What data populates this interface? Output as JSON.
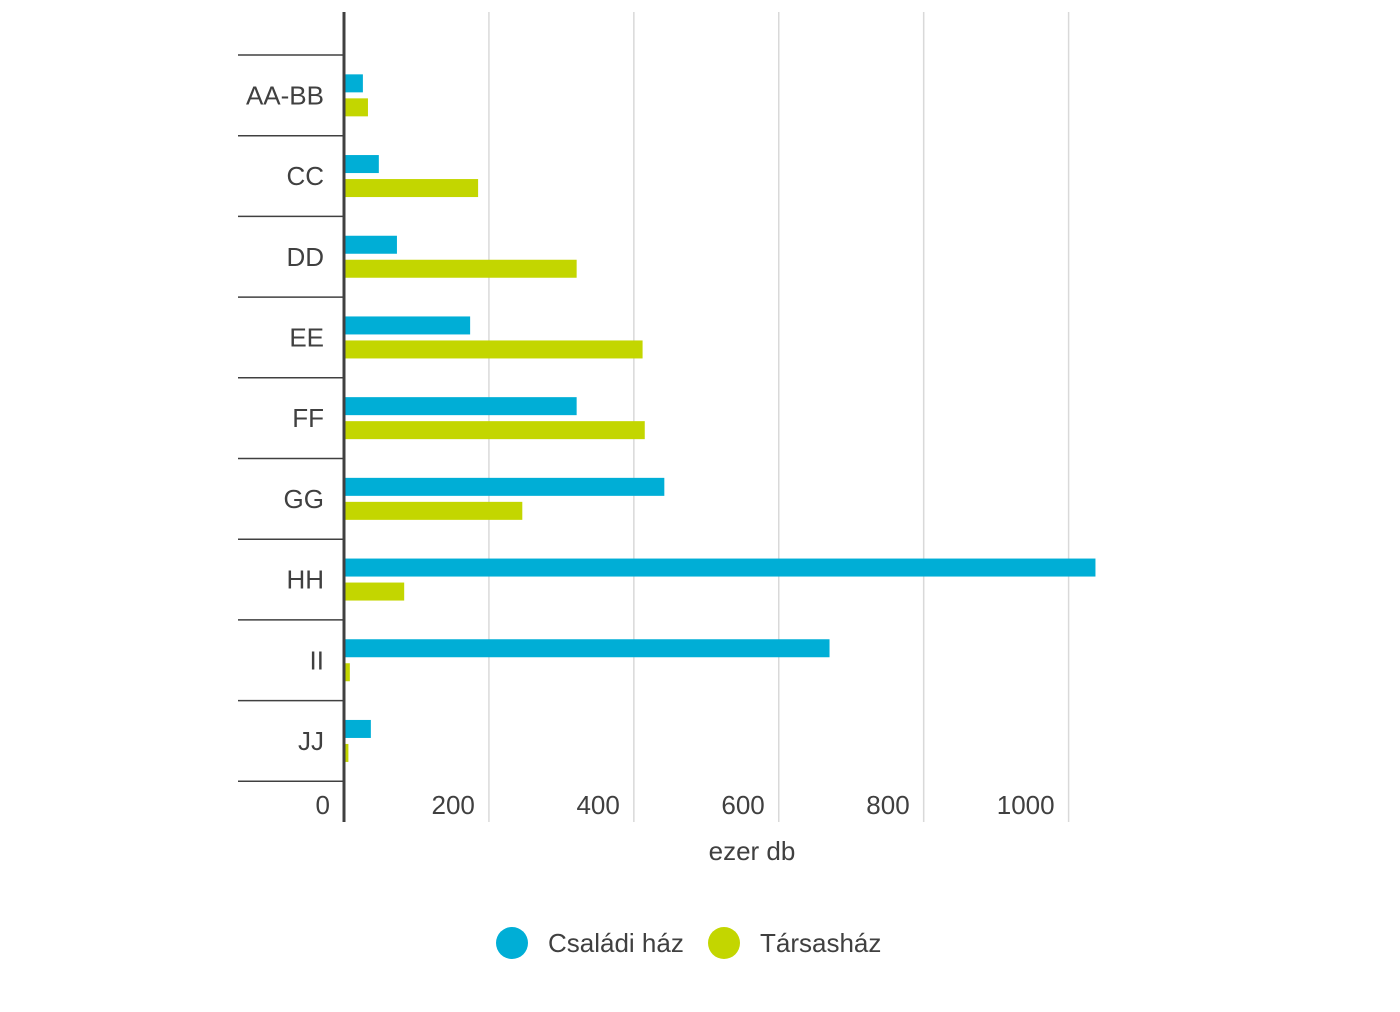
{
  "chart_data": {
    "type": "bar",
    "orientation": "horizontal",
    "categories": [
      "AA-BB",
      "CC",
      "DD",
      "EE",
      "FF",
      "GG",
      "HH",
      "II",
      "JJ"
    ],
    "series": [
      {
        "name": "Családi ház",
        "color": "#00aed6",
        "values": [
          24,
          46,
          71,
          172,
          319,
          440,
          1035,
          668,
          35
        ]
      },
      {
        "name": "Társasház",
        "color": "#c3d600",
        "values": [
          31,
          183,
          319,
          410,
          413,
          244,
          81,
          6,
          4
        ]
      }
    ],
    "xlabel": "ezer db",
    "xticks": [
      0,
      200,
      400,
      600,
      800,
      1000
    ],
    "xlim": [
      0,
      1035
    ],
    "grid": true,
    "legend_position": "bottom"
  }
}
